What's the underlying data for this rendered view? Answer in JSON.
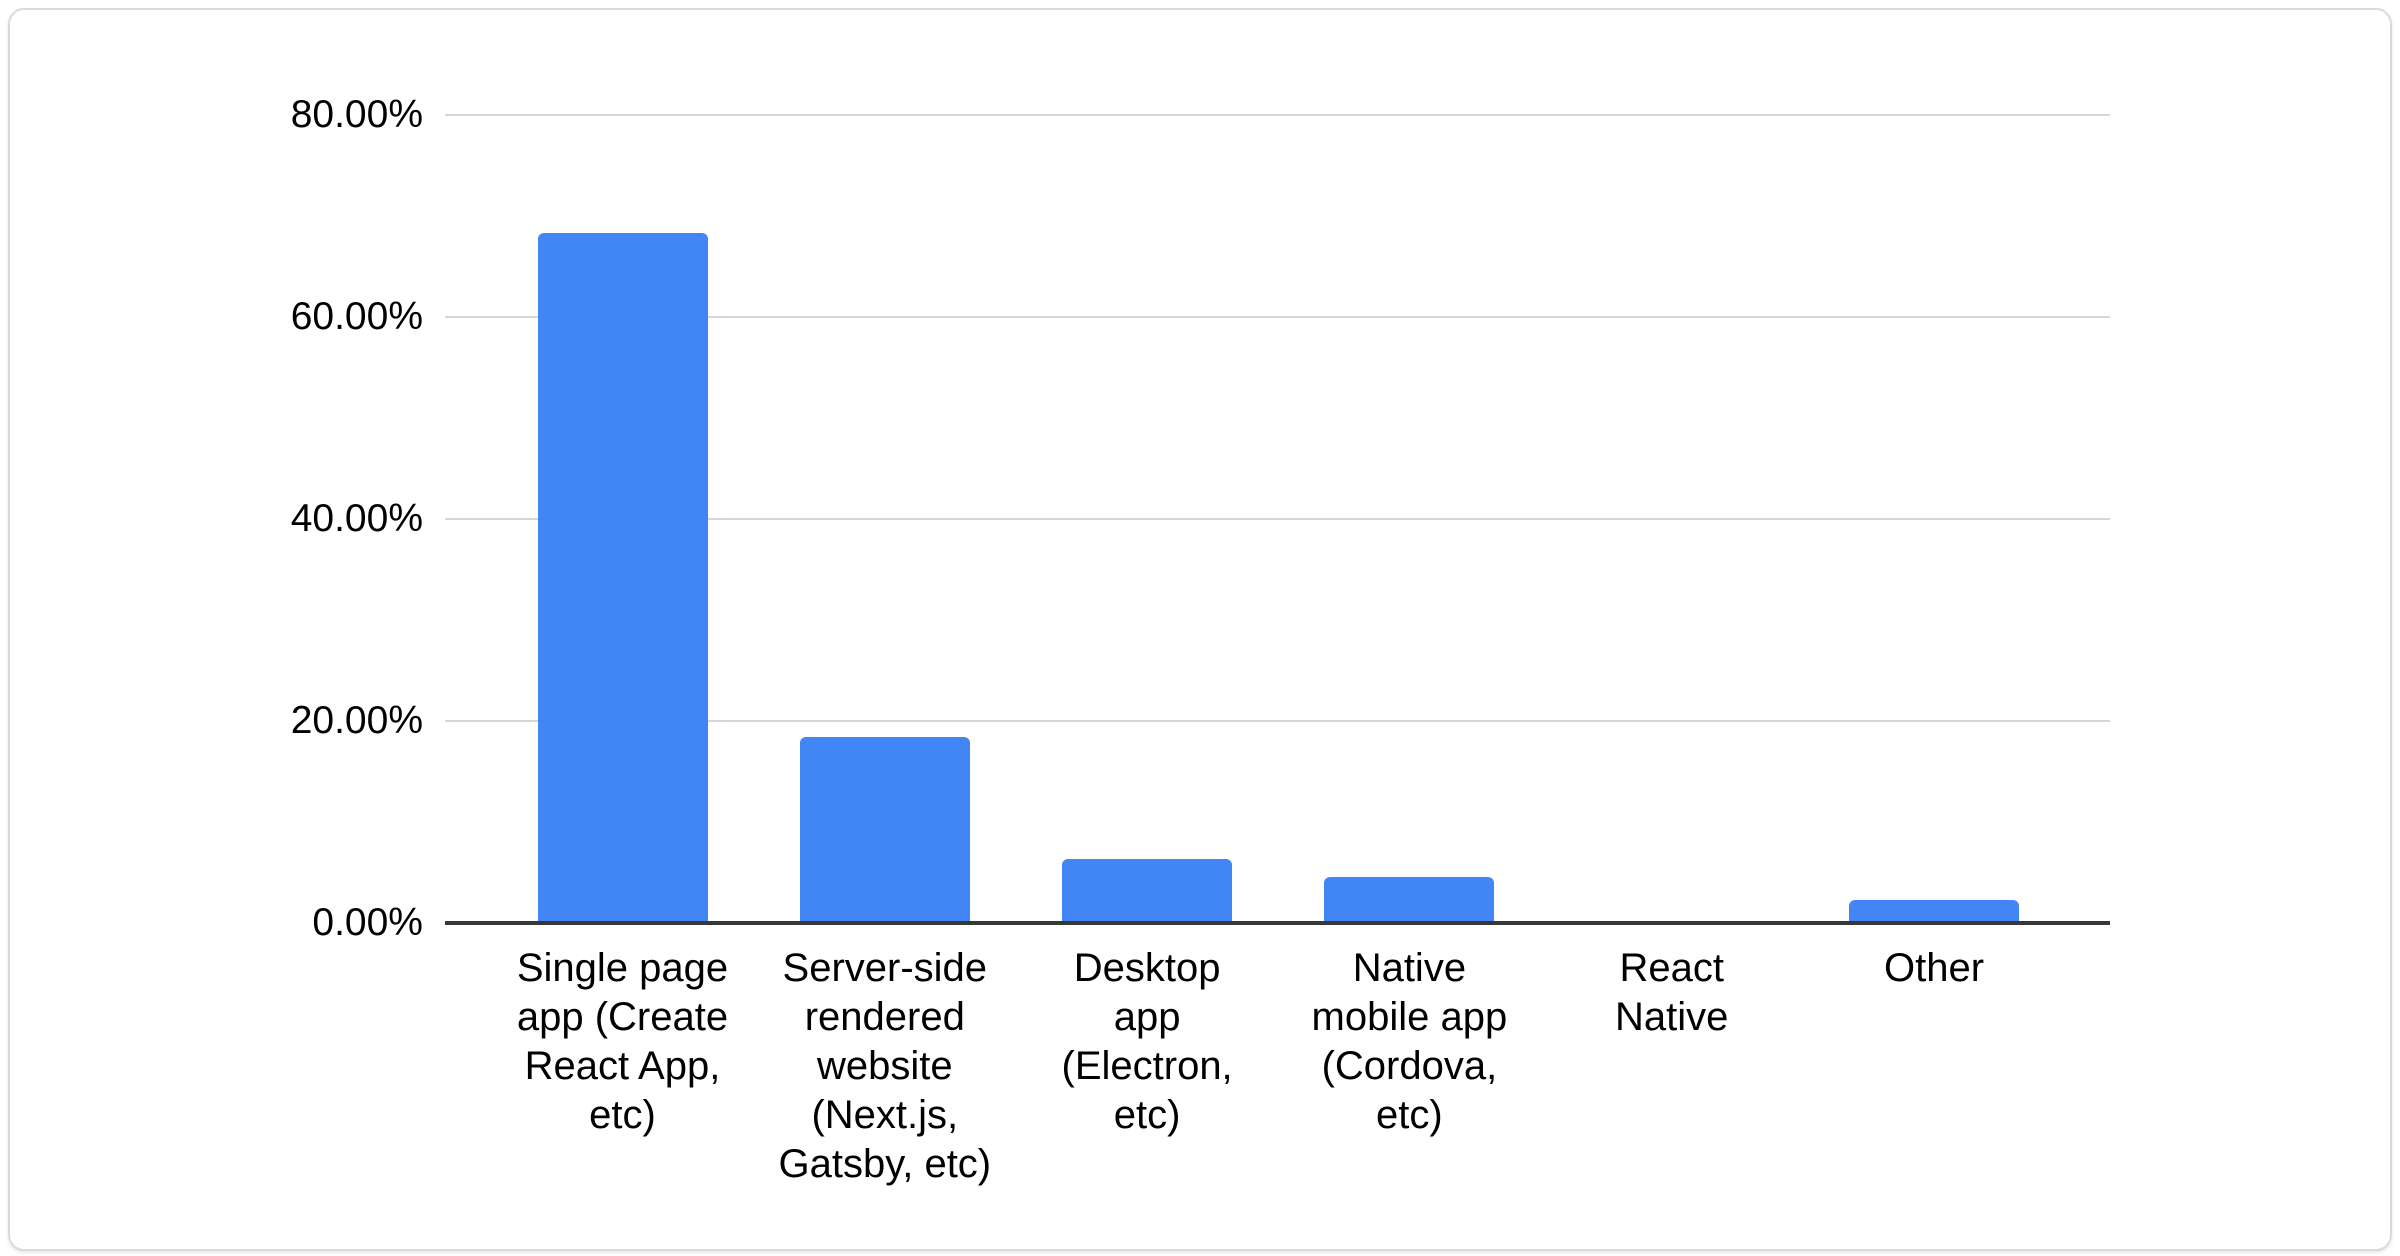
{
  "figure": {
    "card_background": "#ffffff",
    "card_border_color": "#d8dade",
    "page_background": "#ffffff"
  },
  "chart_data": {
    "type": "bar",
    "title": "",
    "xlabel": "",
    "ylabel": "",
    "categories": [
      "Single page app (Create React App, etc)",
      "Server-side rendered website (Next.js, Gatsby, etc)",
      "Desktop app (Electron, etc)",
      "Native mobile app (Cordova, etc)",
      "React Native",
      "Other"
    ],
    "label_lines": [
      [
        "Single page",
        "app (Create",
        "React App,",
        "etc)"
      ],
      [
        "Server-side",
        "rendered",
        "website",
        "(Next.js,",
        "Gatsby, etc)"
      ],
      [
        "Desktop",
        "app",
        "(Electron,",
        "etc)"
      ],
      [
        "Native",
        "mobile app",
        "(Cordova,",
        "etc)"
      ],
      [
        "React",
        "Native"
      ],
      [
        "Other"
      ]
    ],
    "values": [
      68.3,
      18.4,
      6.3,
      4.6,
      0,
      2.3
    ],
    "unit": "%",
    "ylim": [
      0,
      80
    ],
    "yticks": [
      0,
      20,
      40,
      60,
      80
    ],
    "ytick_labels": [
      "0.00%",
      "20.00%",
      "40.00%",
      "60.00%",
      "80.00%"
    ],
    "grid": true,
    "legend": "none",
    "bar_color": "#4285f4",
    "gridline_color": "#d6d6d6",
    "axis_color": "#383838",
    "text_color": "#000000"
  }
}
